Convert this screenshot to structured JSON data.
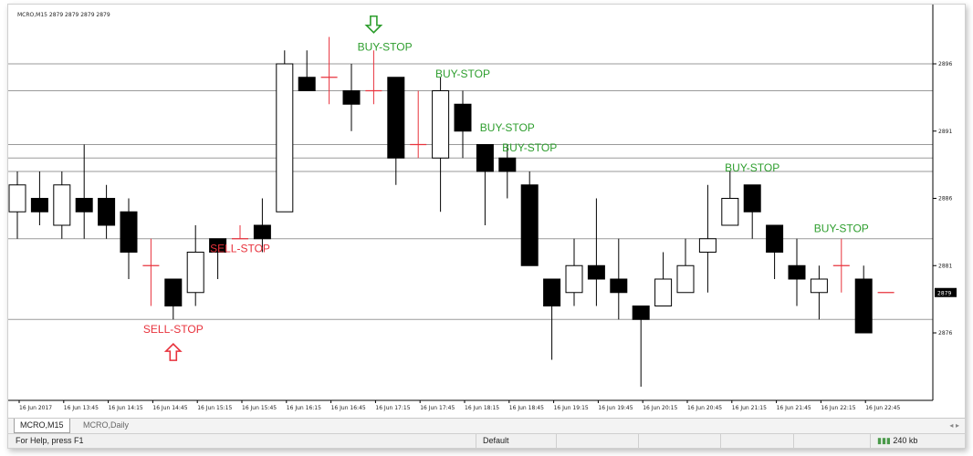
{
  "window": {
    "symbol_caption": "MCRO,M15  2879 2879 2879 2879"
  },
  "tabs": [
    {
      "label": "MCRO,M15"
    },
    {
      "label": "MCRO,Daily"
    }
  ],
  "status": {
    "help": "For Help, press F1",
    "profile": "Default",
    "traffic": "240 kb"
  },
  "colors": {
    "buy": "#2e9e2e",
    "sell": "#e8323c",
    "candle": "#000000",
    "grid": "#9a9a9a"
  },
  "chart_data": {
    "type": "candlestick",
    "symbol": "MCRO",
    "timeframe": "M15",
    "ylim": [
      2871,
      2900
    ],
    "yticks": [
      2896,
      2891,
      2886,
      2881,
      2876
    ],
    "current_price": "2879",
    "xtick_labels": [
      "16 Jun 2017",
      "16 Jun 13:45",
      "16 Jun 14:15",
      "16 Jun 14:45",
      "16 Jun 15:15",
      "16 Jun 15:45",
      "16 Jun 16:15",
      "16 Jun 16:45",
      "16 Jun 17:15",
      "16 Jun 17:45",
      "16 Jun 18:15",
      "16 Jun 18:45",
      "16 Jun 19:15",
      "16 Jun 19:45",
      "16 Jun 20:15",
      "16 Jun 20:45",
      "16 Jun 21:15",
      "16 Jun 21:45",
      "16 Jun 22:15",
      "16 Jun 22:45"
    ],
    "horizontal_levels": [
      2896,
      2894,
      2890,
      2889,
      2888,
      2883,
      2877
    ],
    "candles": [
      {
        "o": 2885,
        "h": 2888,
        "l": 2883,
        "c": 2887
      },
      {
        "o": 2886,
        "h": 2888,
        "l": 2884,
        "c": 2885
      },
      {
        "o": 2884,
        "h": 2888,
        "l": 2883,
        "c": 2887
      },
      {
        "o": 2886,
        "h": 2890,
        "l": 2883,
        "c": 2885
      },
      {
        "o": 2886,
        "h": 2887,
        "l": 2883,
        "c": 2884
      },
      {
        "o": 2885,
        "h": 2886,
        "l": 2880,
        "c": 2882
      },
      {
        "o": 2881,
        "h": 2883,
        "l": 2878,
        "c": 2881
      },
      {
        "o": 2880,
        "h": 2880,
        "l": 2877,
        "c": 2878
      },
      {
        "o": 2879,
        "h": 2884,
        "l": 2878,
        "c": 2882
      },
      {
        "o": 2883,
        "h": 2883,
        "l": 2880,
        "c": 2882
      },
      {
        "o": 2883,
        "h": 2884,
        "l": 2883,
        "c": 2883
      },
      {
        "o": 2884,
        "h": 2886,
        "l": 2882,
        "c": 2883
      },
      {
        "o": 2885,
        "h": 2897,
        "l": 2885,
        "c": 2896
      },
      {
        "o": 2895,
        "h": 2897,
        "l": 2894,
        "c": 2894
      },
      {
        "o": 2895,
        "h": 2898,
        "l": 2893,
        "c": 2895
      },
      {
        "o": 2894,
        "h": 2896,
        "l": 2891,
        "c": 2893
      },
      {
        "o": 2894,
        "h": 2897,
        "l": 2893,
        "c": 2894
      },
      {
        "o": 2895,
        "h": 2895,
        "l": 2887,
        "c": 2889
      },
      {
        "o": 2890,
        "h": 2894,
        "l": 2889,
        "c": 2890
      },
      {
        "o": 2889,
        "h": 2895,
        "l": 2885,
        "c": 2894
      },
      {
        "o": 2893,
        "h": 2894,
        "l": 2889,
        "c": 2891
      },
      {
        "o": 2890,
        "h": 2890,
        "l": 2884,
        "c": 2888
      },
      {
        "o": 2889,
        "h": 2890,
        "l": 2886,
        "c": 2888
      },
      {
        "o": 2887,
        "h": 2888,
        "l": 2881,
        "c": 2881
      },
      {
        "o": 2880,
        "h": 2880,
        "l": 2874,
        "c": 2878
      },
      {
        "o": 2879,
        "h": 2883,
        "l": 2878,
        "c": 2881
      },
      {
        "o": 2881,
        "h": 2886,
        "l": 2878,
        "c": 2880
      },
      {
        "o": 2880,
        "h": 2883,
        "l": 2877,
        "c": 2879
      },
      {
        "o": 2878,
        "h": 2878,
        "l": 2872,
        "c": 2877
      },
      {
        "o": 2878,
        "h": 2882,
        "l": 2878,
        "c": 2880
      },
      {
        "o": 2879,
        "h": 2883,
        "l": 2879,
        "c": 2881
      },
      {
        "o": 2882,
        "h": 2887,
        "l": 2879,
        "c": 2883
      },
      {
        "o": 2884,
        "h": 2888,
        "l": 2884,
        "c": 2886
      },
      {
        "o": 2887,
        "h": 2887,
        "l": 2883,
        "c": 2885
      },
      {
        "o": 2884,
        "h": 2884,
        "l": 2880,
        "c": 2882
      },
      {
        "o": 2881,
        "h": 2883,
        "l": 2878,
        "c": 2880
      },
      {
        "o": 2879,
        "h": 2881,
        "l": 2877,
        "c": 2880
      },
      {
        "o": 2881,
        "h": 2883,
        "l": 2879,
        "c": 2881
      },
      {
        "o": 2880,
        "h": 2881,
        "l": 2876,
        "c": 2876
      },
      {
        "o": 2879,
        "h": 2879,
        "l": 2879,
        "c": 2879
      }
    ],
    "annotations": [
      {
        "text": "SELL-STOP",
        "type": "sell",
        "x": 10,
        "y": 2882
      },
      {
        "text": "SELL-STOP",
        "type": "sell",
        "x": 7,
        "y": 2876
      },
      {
        "text": "BUY-STOP",
        "type": "buy",
        "x": 16.5,
        "y": 2897
      },
      {
        "text": "BUY-STOP",
        "type": "buy",
        "x": 20,
        "y": 2895
      },
      {
        "text": "BUY-STOP",
        "type": "buy",
        "x": 22,
        "y": 2891
      },
      {
        "text": "BUY-STOP",
        "type": "buy",
        "x": 23,
        "y": 2889.5
      },
      {
        "text": "BUY-STOP",
        "type": "buy",
        "x": 33,
        "y": 2888
      },
      {
        "text": "BUY-STOP",
        "type": "buy",
        "x": 37,
        "y": 2883.5
      }
    ],
    "arrows": [
      {
        "direction": "up",
        "type": "sell",
        "x": 7,
        "y": 2874.5
      },
      {
        "direction": "down",
        "type": "buy",
        "x": 16,
        "y": 2899
      }
    ]
  }
}
